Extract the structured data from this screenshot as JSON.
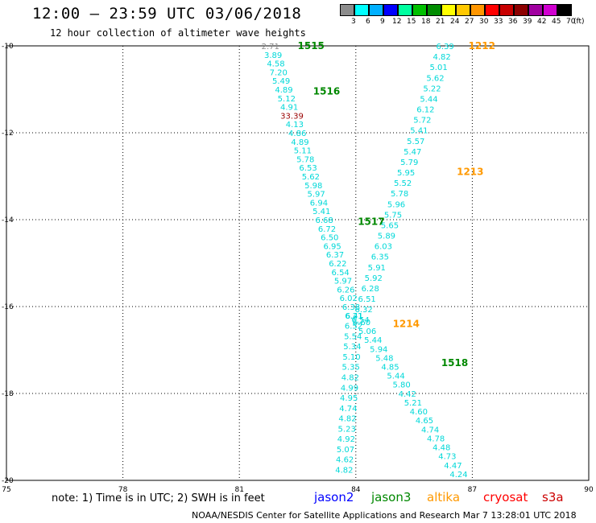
{
  "header": {
    "title": "12:00 – 23:59 UTC 03/06/2018",
    "subtitle": "12 hour collection of altimeter wave heights"
  },
  "colorbar": {
    "unit": "(ft)",
    "labels": [
      "3",
      "6",
      "9",
      "12",
      "15",
      "18",
      "21",
      "24",
      "27",
      "30",
      "33",
      "36",
      "39",
      "42",
      "45",
      "70"
    ],
    "colors": [
      "#8c8c8c",
      "#00ffff",
      "#00b0ff",
      "#0000ff",
      "#00ffa0",
      "#00c000",
      "#008c00",
      "#ffff00",
      "#ffc800",
      "#ff9600",
      "#ff0000",
      "#c80000",
      "#8c0000",
      "#a000a0",
      "#d000d0",
      "#000000"
    ]
  },
  "axes": {
    "x_ticks": [
      "75",
      "78",
      "81",
      "84",
      "87",
      "90"
    ],
    "y_ticks": [
      "-10",
      "-12",
      "-14",
      "-16",
      "-18",
      "-20"
    ]
  },
  "labels": {
    "passes": [
      {
        "text": "1515",
        "color": "#008800",
        "lon": 82.5,
        "lat": -10.0
      },
      {
        "text": "1516",
        "color": "#008800",
        "lon": 82.9,
        "lat": -11.05
      },
      {
        "text": "1517",
        "color": "#008800",
        "lon": 84.05,
        "lat": -14.05
      },
      {
        "text": "1518",
        "color": "#008800",
        "lon": 86.2,
        "lat": -17.3
      },
      {
        "text": "1212",
        "color": "#ff9900",
        "lon": 86.9,
        "lat": -10.0
      },
      {
        "text": "1213",
        "color": "#ff9900",
        "lon": 86.6,
        "lat": -12.9
      },
      {
        "text": "1214",
        "color": "#ff9900",
        "lon": 84.95,
        "lat": -16.4
      }
    ]
  },
  "chart_data": {
    "type": "scatter",
    "xlim": [
      75,
      90
    ],
    "ylim": [
      -20,
      -10
    ],
    "grid": true,
    "track_a": {
      "start": [
        81.8,
        -10.0
      ],
      "end": [
        83.95,
        -16.2
      ],
      "values": [
        "2.71",
        "3.89",
        "4.58",
        "7.20",
        "5.49",
        "4.89",
        "5.12",
        "4.91",
        "33.39",
        "4.13",
        "4.86",
        "4.89",
        "5.11",
        "5.78",
        "6.53",
        "5.62",
        "5.98",
        "5.97",
        "6.94",
        "5.41",
        "6.68",
        "6.72",
        "6.50",
        "6.95",
        "6.37",
        "6.22",
        "6.54",
        "5.97",
        "6.26",
        "6.02",
        "6.38",
        "6.21"
      ]
    },
    "track_b": {
      "start": [
        83.96,
        -16.2
      ],
      "end": [
        83.7,
        -19.75
      ],
      "values": [
        "6.41",
        "6.52",
        "5.54",
        "5.34",
        "5.10",
        "5.35",
        "4.82",
        "4.99",
        "4.95",
        "4.74",
        "4.82",
        "5.23",
        "4.92",
        "5.07",
        "4.62",
        "4.82"
      ]
    },
    "track_c": {
      "start": [
        86.3,
        -10.0
      ],
      "end": [
        84.12,
        -16.3
      ],
      "values": [
        "6.39",
        "4.82",
        "5.01",
        "5.62",
        "5.22",
        "5.44",
        "6.12",
        "5.72",
        "5.41",
        "5.57",
        "5.47",
        "5.79",
        "5.95",
        "5.52",
        "5.78",
        "5.96",
        "5.75",
        "5.65",
        "5.89",
        "6.03",
        "6.35",
        "5.91",
        "5.92",
        "6.28",
        "6.51",
        "6.32",
        "6.54"
      ]
    },
    "track_d": {
      "start": [
        84.15,
        -16.35
      ],
      "end": [
        86.65,
        -19.85
      ],
      "values": [
        "6.60",
        "5.06",
        "5.44",
        "5.94",
        "5.48",
        "4.85",
        "5.44",
        "5.80",
        "4.42",
        "5.21",
        "4.60",
        "4.65",
        "4.74",
        "4.78",
        "4.48",
        "4.73",
        "4.47",
        "4.24"
      ]
    }
  },
  "note": "note: 1) Time is in UTC; 2) SWH is in feet",
  "legend": [
    {
      "text": "jason2",
      "color": "#0000ff"
    },
    {
      "text": "jason3",
      "color": "#008800"
    },
    {
      "text": "altika",
      "color": "#ff9900"
    },
    {
      "text": "cryosat",
      "color": "#ff0000"
    },
    {
      "text": "s3a",
      "color": "#cc0000"
    }
  ],
  "footer": "NOAA/NESDIS Center for Satellite Applications and Research   Mar  7 13:28:01 UTC 2018"
}
